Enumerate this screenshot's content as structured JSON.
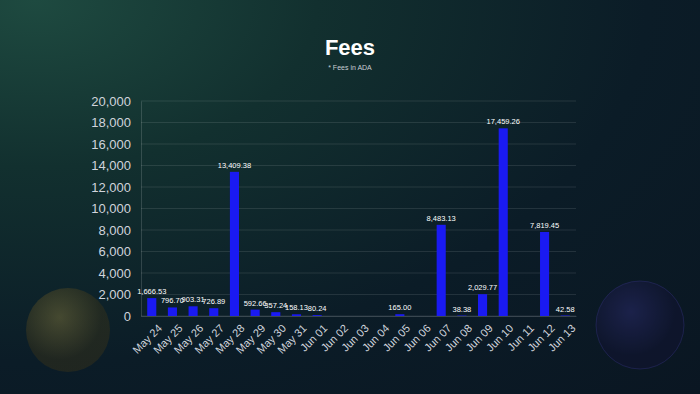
{
  "chart_data": {
    "type": "bar",
    "title": "Fees",
    "subtitle": "* Fees in ADA",
    "categories": [
      "May 24",
      "May 25",
      "May 26",
      "May 27",
      "May 28",
      "May 29",
      "May 30",
      "May 31",
      "Jun 01",
      "Jun 02",
      "Jun 03",
      "Jun 04",
      "Jun 05",
      "Jun 06",
      "Jun 07",
      "Jun 08",
      "Jun 09",
      "Jun 10",
      "Jun 11",
      "Jun 12",
      "Jun 13"
    ],
    "values": [
      1666.53,
      796.7,
      903.31,
      726.89,
      13409.38,
      592.66,
      357.24,
      158.13,
      80.24,
      null,
      null,
      null,
      165.0,
      null,
      8483.13,
      38.38,
      2029.77,
      17459.26,
      null,
      7819.45,
      42.58
    ],
    "value_labels": [
      "1,666.53",
      "796.70",
      "903.31",
      "726.89",
      "13,409.38",
      "592.66",
      "357.24",
      "158.13",
      "80.24",
      null,
      null,
      null,
      "165.00",
      null,
      "8,483.13",
      "38.38",
      "2,029.77",
      "17,459.26",
      null,
      "7,819.45",
      "42.58"
    ],
    "color": "#1a1af2",
    "ylim": [
      0,
      20000
    ],
    "yticks": [
      0,
      {
        "value": 2000,
        "label": "2,000"
      },
      {
        "value": 4000,
        "label": "4,000"
      },
      {
        "value": 6000,
        "label": "6,000"
      },
      {
        "value": 8000,
        "label": "8,000"
      },
      {
        "value": 10000,
        "label": "10,000"
      },
      {
        "value": 12000,
        "label": "12,000"
      },
      {
        "value": 14000,
        "label": "14,000"
      },
      {
        "value": 16000,
        "label": "16,000"
      },
      {
        "value": 18000,
        "label": "18,000"
      },
      {
        "value": 20000,
        "label": "20,000"
      }
    ],
    "grid": true,
    "data_labels": true
  }
}
